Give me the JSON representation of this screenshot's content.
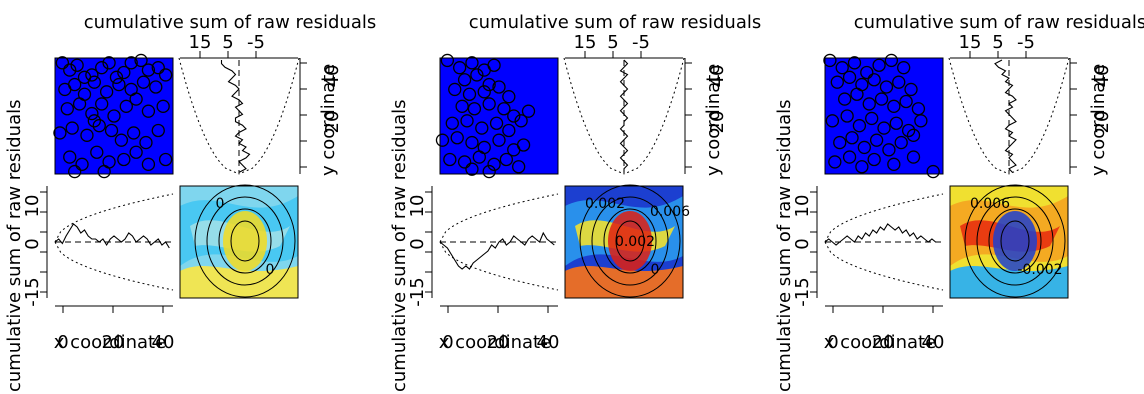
{
  "chart_data": [
    {
      "type": "scatter",
      "labels": {
        "top": "cumulative sum of raw residuals",
        "side": "cumulative sum of raw residuals",
        "xlabel": "x coordinate",
        "ylabel": "y coordinate",
        "top_ticks": [
          "15",
          "5",
          "-5"
        ],
        "side_ticks": [
          "-15",
          "0",
          "10"
        ],
        "x_ticks": [
          "0",
          "20",
          "40"
        ],
        "y_ticks": [
          "20",
          "40"
        ]
      },
      "points": [
        [
          3,
          46
        ],
        [
          6,
          43
        ],
        [
          9,
          45
        ],
        [
          12,
          40
        ],
        [
          15,
          41
        ],
        [
          19,
          44
        ],
        [
          22,
          46
        ],
        [
          25,
          40
        ],
        [
          28,
          42
        ],
        [
          31,
          46
        ],
        [
          35,
          47
        ],
        [
          38,
          43
        ],
        [
          42,
          44
        ],
        [
          45,
          41
        ],
        [
          4,
          35
        ],
        [
          8,
          37
        ],
        [
          12,
          33
        ],
        [
          16,
          38
        ],
        [
          21,
          34
        ],
        [
          26,
          37
        ],
        [
          31,
          35
        ],
        [
          36,
          38
        ],
        [
          41,
          36
        ],
        [
          5,
          27
        ],
        [
          10,
          29
        ],
        [
          15,
          25
        ],
        [
          19,
          29
        ],
        [
          24,
          24
        ],
        [
          29,
          28
        ],
        [
          33,
          31
        ],
        [
          38,
          26
        ],
        [
          44,
          28
        ],
        [
          2,
          17
        ],
        [
          7,
          19
        ],
        [
          13,
          16
        ],
        [
          16,
          22
        ],
        [
          18,
          20
        ],
        [
          23,
          18
        ],
        [
          27,
          14
        ],
        [
          32,
          17
        ],
        [
          37,
          13
        ],
        [
          42,
          18
        ],
        [
          6,
          7
        ],
        [
          11,
          4
        ],
        [
          17,
          9
        ],
        [
          22,
          5
        ],
        [
          28,
          6
        ],
        [
          33,
          9
        ],
        [
          38,
          4
        ],
        [
          45,
          6
        ],
        [
          8,
          1
        ],
        [
          20,
          1
        ]
      ],
      "x_curve": [
        0,
        1,
        -0.5,
        2,
        4,
        6,
        5,
        3,
        4,
        2,
        1,
        1,
        0,
        1,
        -1,
        1,
        2,
        1,
        0,
        1,
        3,
        2,
        0,
        1,
        2,
        1,
        -1,
        0,
        1,
        -1,
        0,
        -2
      ],
      "y_curve": [
        -5,
        -5,
        -4,
        -2,
        -1,
        -2,
        -3,
        -1,
        0,
        -1,
        -2,
        0,
        1,
        -1,
        0,
        1,
        -1,
        -1,
        1,
        2,
        0,
        -1,
        1,
        0,
        2,
        1,
        3,
        2,
        0,
        1,
        2,
        0
      ],
      "contour_labels": [
        "0",
        "0"
      ],
      "heatmap_colors": [
        "#7fd6ee",
        "#40c6f2",
        "#9fdfe8",
        "#f6e64b",
        "#f4dc20"
      ]
    },
    {
      "type": "scatter",
      "labels": {
        "top": "cumulative sum of raw residuals",
        "side": "cumulative sum of raw residuals",
        "xlabel": "x coordinate",
        "ylabel": "y coordinate",
        "top_ticks": [
          "15",
          "5",
          "-5"
        ],
        "side_ticks": [
          "-15",
          "0",
          "10"
        ],
        "x_ticks": [
          "0",
          "20",
          "40"
        ],
        "y_ticks": [
          "20",
          "40"
        ]
      },
      "points": [
        [
          3,
          47
        ],
        [
          8,
          44
        ],
        [
          13,
          46
        ],
        [
          18,
          43
        ],
        [
          22,
          45
        ],
        [
          10,
          39
        ],
        [
          15,
          41
        ],
        [
          20,
          37
        ],
        [
          6,
          35
        ],
        [
          12,
          33
        ],
        [
          18,
          34
        ],
        [
          24,
          36
        ],
        [
          28,
          32
        ],
        [
          9,
          28
        ],
        [
          14,
          27
        ],
        [
          20,
          29
        ],
        [
          26,
          27
        ],
        [
          30,
          24
        ],
        [
          36,
          26
        ],
        [
          5,
          21
        ],
        [
          11,
          22
        ],
        [
          17,
          19
        ],
        [
          23,
          21
        ],
        [
          28,
          18
        ],
        [
          33,
          22
        ],
        [
          1,
          14
        ],
        [
          7,
          15
        ],
        [
          13,
          13
        ],
        [
          18,
          11
        ],
        [
          24,
          14
        ],
        [
          30,
          10
        ],
        [
          34,
          12
        ],
        [
          4,
          6
        ],
        [
          10,
          5
        ],
        [
          16,
          7
        ],
        [
          22,
          4
        ],
        [
          27,
          6
        ],
        [
          13,
          2
        ],
        [
          20,
          1
        ],
        [
          32,
          3
        ]
      ],
      "x_curve": [
        0,
        -1,
        -2,
        -4,
        -6,
        -8,
        -9,
        -8,
        -9,
        -7,
        -6,
        -5,
        -4,
        -3,
        -1,
        -2,
        0,
        1,
        -1,
        0,
        2,
        1,
        0,
        -1,
        1,
        2,
        1,
        0,
        3,
        1,
        0,
        -1
      ],
      "y_curve": [
        0,
        1,
        0,
        -1,
        1,
        0,
        -1,
        0,
        1,
        0,
        -1,
        0,
        1,
        0,
        -1,
        0,
        1,
        0,
        0,
        -1,
        0,
        1,
        0,
        -1,
        0,
        1,
        0,
        -1,
        0,
        1,
        0,
        0
      ],
      "contour_labels": [
        "0.002",
        "0",
        "0.002",
        "0.006"
      ],
      "heatmap_colors": [
        "#1c3fd0",
        "#2c9ff0",
        "#f0e030",
        "#f07020",
        "#e02010"
      ]
    },
    {
      "type": "scatter",
      "labels": {
        "top": "cumulative sum of raw residuals",
        "side": "cumulative sum of raw residuals",
        "xlabel": "x coordinate",
        "ylabel": "y coordinate",
        "top_ticks": [
          "15",
          "5",
          "-5"
        ],
        "side_ticks": [
          "-15",
          "0",
          "10"
        ],
        "x_ticks": [
          "0",
          "20",
          "40"
        ],
        "y_ticks": [
          "20",
          "40"
        ]
      },
      "points": [
        [
          2,
          47
        ],
        [
          7,
          44
        ],
        [
          12,
          46
        ],
        [
          17,
          42
        ],
        [
          22,
          45
        ],
        [
          27,
          47
        ],
        [
          32,
          44
        ],
        [
          5,
          38
        ],
        [
          10,
          40
        ],
        [
          15,
          37
        ],
        [
          20,
          39
        ],
        [
          25,
          36
        ],
        [
          30,
          38
        ],
        [
          35,
          35
        ],
        [
          8,
          31
        ],
        [
          13,
          33
        ],
        [
          18,
          29
        ],
        [
          23,
          31
        ],
        [
          28,
          28
        ],
        [
          33,
          30
        ],
        [
          38,
          27
        ],
        [
          3,
          22
        ],
        [
          9,
          24
        ],
        [
          14,
          20
        ],
        [
          19,
          23
        ],
        [
          24,
          19
        ],
        [
          29,
          21
        ],
        [
          34,
          18
        ],
        [
          39,
          22
        ],
        [
          6,
          13
        ],
        [
          11,
          15
        ],
        [
          16,
          11
        ],
        [
          21,
          14
        ],
        [
          26,
          10
        ],
        [
          31,
          13
        ],
        [
          36,
          16
        ],
        [
          4,
          5
        ],
        [
          10,
          7
        ],
        [
          15,
          3
        ],
        [
          20,
          6
        ],
        [
          28,
          4
        ],
        [
          36,
          7
        ],
        [
          44,
          1
        ]
      ],
      "x_curve": [
        0,
        1,
        0,
        -1,
        0,
        1,
        2,
        1,
        0,
        2,
        1,
        3,
        2,
        4,
        3,
        5,
        4,
        6,
        5,
        4,
        5,
        3,
        4,
        2,
        3,
        1,
        2,
        1,
        0,
        1,
        0,
        0
      ],
      "y_curve": [
        -2,
        -4,
        -3,
        -1,
        -2,
        0,
        -1,
        1,
        0,
        -1,
        1,
        2,
        0,
        1,
        -1,
        0,
        1,
        2,
        0,
        -1,
        1,
        0,
        2,
        1,
        0,
        -1,
        1,
        0,
        1,
        2,
        0,
        1
      ],
      "contour_labels": [
        "0.006",
        "-0.002"
      ],
      "heatmap_colors": [
        "#f0e030",
        "#f4a020",
        "#e83010",
        "#2cb0f0",
        "#1c40d0"
      ]
    }
  ]
}
